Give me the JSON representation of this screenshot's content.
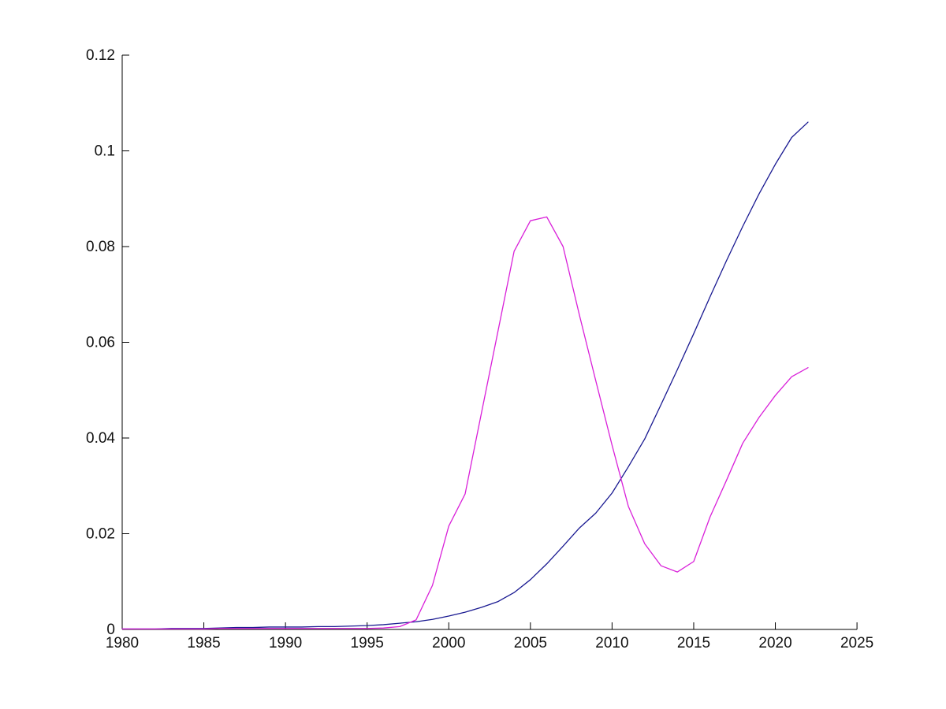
{
  "figure": {
    "background": "#ffffff"
  },
  "chart_data": {
    "type": "line",
    "title": "",
    "xlabel": "",
    "ylabel": "",
    "xlim": [
      1980,
      2025
    ],
    "ylim": [
      0,
      0.12
    ],
    "grid": false,
    "legend_position": "none",
    "axis_color": "#000000",
    "xticks": [
      1980,
      1985,
      1990,
      1995,
      2000,
      2005,
      2010,
      2015,
      2020,
      2025
    ],
    "xtick_labels": [
      "1980",
      "1985",
      "1990",
      "1995",
      "2000",
      "2005",
      "2010",
      "2015",
      "2020",
      "2025"
    ],
    "yticks": [
      0,
      0.02,
      0.04,
      0.06,
      0.08,
      0.1,
      0.12
    ],
    "ytick_labels": [
      "0",
      "0.02",
      "0.04",
      "0.06",
      "0.08",
      "0.1",
      "0.12"
    ],
    "x": [
      1980,
      1981,
      1982,
      1983,
      1984,
      1985,
      1986,
      1987,
      1988,
      1989,
      1990,
      1991,
      1992,
      1993,
      1994,
      1995,
      1996,
      1997,
      1998,
      1999,
      2000,
      2001,
      2002,
      2003,
      2004,
      2005,
      2006,
      2007,
      2008,
      2009,
      2010,
      2011,
      2012,
      2013,
      2014,
      2015,
      2016,
      2017,
      2018,
      2019,
      2020,
      2021,
      2022
    ],
    "series": [
      {
        "name": "dark-blue-line",
        "color": "#191991",
        "values": [
          0.0001,
          0.0001,
          0.0001,
          0.0002,
          0.0002,
          0.0002,
          0.0003,
          0.0004,
          0.0004,
          0.0005,
          0.0005,
          0.0005,
          0.0006,
          0.0006,
          0.0007,
          0.0008,
          0.001,
          0.0013,
          0.0016,
          0.0021,
          0.0028,
          0.0036,
          0.0046,
          0.0058,
          0.0077,
          0.0104,
          0.0137,
          0.0174,
          0.0212,
          0.0243,
          0.0285,
          0.034,
          0.0398,
          0.047,
          0.0543,
          0.0618,
          0.0695,
          0.077,
          0.0842,
          0.091,
          0.0972,
          0.1028,
          0.106
        ]
      },
      {
        "name": "magenta-line",
        "color": "#d920d9",
        "values": [
          0.0001,
          0.0001,
          0.0001,
          0.0001,
          0.0001,
          0.0001,
          0.0002,
          0.0002,
          0.0002,
          0.0002,
          0.0002,
          0.0002,
          0.0002,
          0.0002,
          0.0002,
          0.0002,
          0.0003,
          0.0006,
          0.002,
          0.0092,
          0.0216,
          0.0283,
          0.0452,
          0.0621,
          0.079,
          0.0854,
          0.0862,
          0.08,
          0.0657,
          0.052,
          0.0385,
          0.0257,
          0.0179,
          0.0133,
          0.012,
          0.0142,
          0.0235,
          0.0311,
          0.0389,
          0.0443,
          0.0489,
          0.0528,
          0.0547
        ]
      }
    ]
  }
}
